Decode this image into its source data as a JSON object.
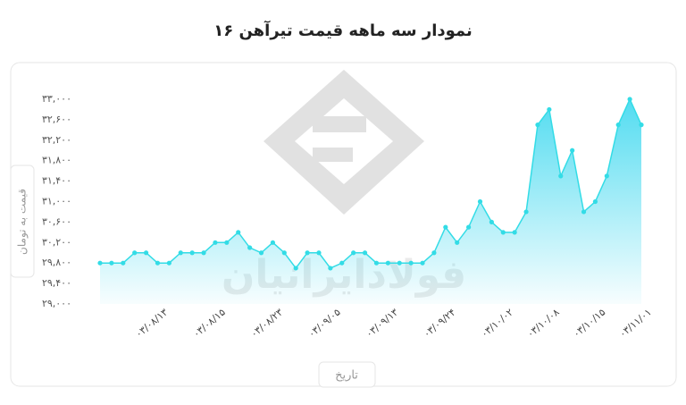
{
  "chart_data": {
    "type": "line",
    "title": "نمودار سه ماهه قیمت تیرآهن ۱۶",
    "y_label": "قیمت به تومان",
    "x_label": "تاریخ",
    "watermark": "فولادایرانیان",
    "color": "#33dce6",
    "categories": [
      null,
      null,
      null,
      null,
      null,
      "۰۳/۰۸/۱۳",
      null,
      null,
      null,
      null,
      "۰۳/۰۸/۱۵",
      null,
      null,
      null,
      null,
      "۰۳/۰۸/۲۳",
      null,
      null,
      null,
      null,
      "۰۳/۰۹/۰۵",
      null,
      null,
      null,
      null,
      "۰۳/۰۹/۱۳",
      null,
      null,
      null,
      null,
      "۰۳/۰۹/۲۴",
      null,
      null,
      null,
      null,
      "۰۳/۱۰/۰۲",
      null,
      null,
      null,
      "۰۳/۱۰/۰۸",
      null,
      null,
      null,
      "۰۳/۱۰/۱۵",
      null,
      null,
      null,
      "۰۳/۱۱/۰۱"
    ],
    "values": [
      29800,
      29800,
      29800,
      30000,
      30000,
      29800,
      29800,
      30000,
      30000,
      30000,
      30200,
      30200,
      30400,
      30100,
      30000,
      30200,
      30000,
      29700,
      30000,
      30000,
      29700,
      29800,
      30000,
      30000,
      29800,
      29800,
      29800,
      29800,
      29800,
      30000,
      30500,
      30200,
      30500,
      31000,
      30600,
      30400,
      30400,
      30800,
      32500,
      32800,
      31500,
      32000,
      30800,
      31000,
      31500,
      32500,
      33000,
      32500
    ],
    "ylim": [
      29000,
      33000
    ],
    "yticks": [
      {
        "value": 29000,
        "label": "۲۹,۰۰۰"
      },
      {
        "value": 29400,
        "label": "۲۹,۴۰۰"
      },
      {
        "value": 29800,
        "label": "۲۹,۸۰۰"
      },
      {
        "value": 30200,
        "label": "۳۰,۲۰۰"
      },
      {
        "value": 30600,
        "label": "۳۰,۶۰۰"
      },
      {
        "value": 31000,
        "label": "۳۱,۰۰۰"
      },
      {
        "value": 31400,
        "label": "۳۱,۴۰۰"
      },
      {
        "value": 31800,
        "label": "۳۱,۸۰۰"
      },
      {
        "value": 32200,
        "label": "۳۲,۲۰۰"
      },
      {
        "value": 32600,
        "label": "۳۲,۶۰۰"
      },
      {
        "value": 33000,
        "label": "۳۳,۰۰۰"
      }
    ],
    "grid": false
  }
}
